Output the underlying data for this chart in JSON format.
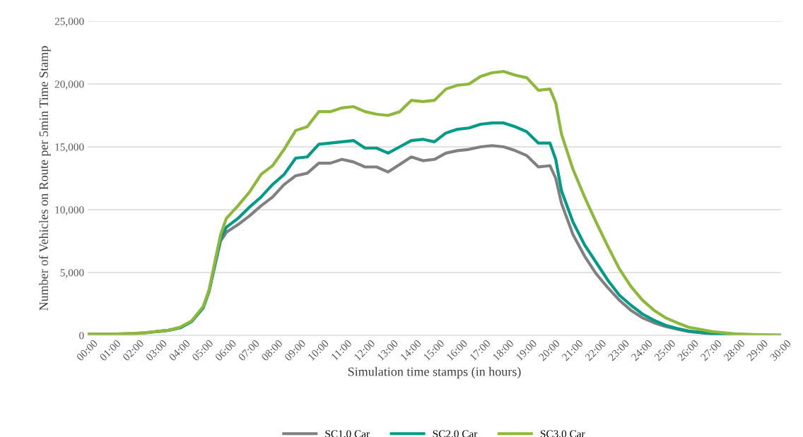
{
  "chart_data": {
    "type": "line",
    "xlabel": "Simulation time stamps (in hours)",
    "ylabel": "Number of Vehicles on Route per 5min Time Stamp",
    "x": [
      0,
      1,
      2,
      2.5,
      3,
      3.5,
      4,
      4.5,
      5,
      5.25,
      5.5,
      5.75,
      6,
      6.5,
      7,
      7.5,
      8,
      8.5,
      9,
      9.5,
      10,
      10.5,
      11,
      11.5,
      12,
      12.5,
      13,
      13.5,
      14,
      14.5,
      15,
      15.5,
      16,
      16.5,
      17,
      17.5,
      18,
      18.5,
      19,
      19.5,
      20,
      20.25,
      20.5,
      21,
      21.5,
      22,
      22.5,
      23,
      23.5,
      24,
      24.5,
      25,
      25.5,
      26,
      27,
      28,
      29,
      30
    ],
    "series": [
      {
        "name": "SC1.0 Car",
        "color": "#808080",
        "values": [
          100,
          100,
          150,
          200,
          300,
          400,
          600,
          1100,
          2200,
          3500,
          5500,
          7500,
          8200,
          8800,
          9500,
          10300,
          11000,
          12000,
          12700,
          12900,
          13700,
          13700,
          14000,
          13800,
          13400,
          13400,
          13000,
          13600,
          14200,
          13900,
          14000,
          14500,
          14700,
          14800,
          15000,
          15100,
          15000,
          14700,
          14300,
          13400,
          13500,
          12500,
          10500,
          8000,
          6300,
          4900,
          3800,
          2800,
          2000,
          1400,
          1000,
          700,
          500,
          300,
          120,
          50,
          null,
          null
        ]
      },
      {
        "name": "SC2.0 Car",
        "color": "#009b86",
        "values": [
          null,
          null,
          null,
          null,
          300,
          400,
          600,
          1100,
          2200,
          3500,
          5600,
          7700,
          8600,
          9300,
          10200,
          11000,
          12000,
          12800,
          14100,
          14200,
          15200,
          15300,
          15400,
          15500,
          14900,
          14900,
          14500,
          15000,
          15500,
          15600,
          15400,
          16100,
          16400,
          16500,
          16800,
          16900,
          16900,
          16600,
          16200,
          15300,
          15300,
          14000,
          11500,
          9000,
          7200,
          5800,
          4400,
          3200,
          2400,
          1700,
          1200,
          800,
          550,
          350,
          150,
          60,
          30,
          10
        ]
      },
      {
        "name": "SC3.0 Car",
        "color": "#8db83a",
        "values": [
          100,
          100,
          150,
          200,
          300,
          400,
          650,
          1150,
          2300,
          3600,
          5800,
          8000,
          9300,
          10300,
          11400,
          12800,
          13500,
          14800,
          16300,
          16600,
          17800,
          17800,
          18100,
          18200,
          17800,
          17600,
          17500,
          17800,
          18700,
          18600,
          18700,
          19600,
          19900,
          20000,
          20600,
          20900,
          21000,
          20700,
          20500,
          19500,
          19600,
          18500,
          16000,
          13200,
          11000,
          9000,
          7100,
          5300,
          3900,
          2800,
          2000,
          1400,
          1000,
          650,
          300,
          120,
          50,
          20
        ]
      }
    ],
    "xlim": [
      0,
      30
    ],
    "xticks": [
      {
        "value": 0,
        "label": "00:00"
      },
      {
        "value": 1,
        "label": "01:00"
      },
      {
        "value": 2,
        "label": "02:00"
      },
      {
        "value": 3,
        "label": "03:00"
      },
      {
        "value": 4,
        "label": "04:00"
      },
      {
        "value": 5,
        "label": "05:00"
      },
      {
        "value": 6,
        "label": "06:00"
      },
      {
        "value": 7,
        "label": "07:00"
      },
      {
        "value": 8,
        "label": "08:00"
      },
      {
        "value": 9,
        "label": "09:00"
      },
      {
        "value": 10,
        "label": "10:00"
      },
      {
        "value": 11,
        "label": "11:00"
      },
      {
        "value": 12,
        "label": "12:00"
      },
      {
        "value": 13,
        "label": "13:00"
      },
      {
        "value": 14,
        "label": "14:00"
      },
      {
        "value": 15,
        "label": "15:00"
      },
      {
        "value": 16,
        "label": "16:00"
      },
      {
        "value": 17,
        "label": "17:00"
      },
      {
        "value": 18,
        "label": "18:00"
      },
      {
        "value": 19,
        "label": "19:00"
      },
      {
        "value": 20,
        "label": "20:00"
      },
      {
        "value": 21,
        "label": "21:00"
      },
      {
        "value": 22,
        "label": "22:00"
      },
      {
        "value": 23,
        "label": "23:00"
      },
      {
        "value": 24,
        "label": "24:00"
      },
      {
        "value": 25,
        "label": "25:00"
      },
      {
        "value": 26,
        "label": "26:00"
      },
      {
        "value": 27,
        "label": "27:00"
      },
      {
        "value": 28,
        "label": "28:00"
      },
      {
        "value": 29,
        "label": "29:00"
      },
      {
        "value": 30,
        "label": "30:00"
      }
    ],
    "ylim": [
      0,
      25000
    ],
    "yticks": [
      0,
      {
        "value": 5000,
        "label": "5,000"
      },
      {
        "value": 10000,
        "label": "10,000"
      },
      {
        "value": 15000,
        "label": "15,000"
      },
      {
        "value": 20000,
        "label": "20,000"
      },
      {
        "value": 25000,
        "label": "25,000"
      }
    ],
    "grid": "y",
    "legend": "bottom",
    "marker": "none",
    "line_style": "solid"
  }
}
